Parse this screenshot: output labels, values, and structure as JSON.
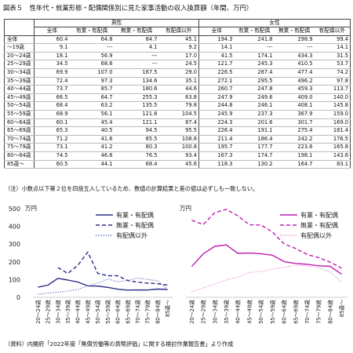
{
  "title": "図表５　性年代・就業形態・配偶関係別に見た家事活動の収入換算額（年間、万円）",
  "table": {
    "group_labels": [
      "男性",
      "女性"
    ],
    "column_labels": [
      "全体",
      "有業・有配偶",
      "無業・有配偶",
      "有配偶以外"
    ],
    "rows": [
      {
        "label": "全体",
        "male": [
          "60.4",
          "64.8",
          "84.7",
          "45.1"
        ],
        "female": [
          "194.3",
          "241.8",
          "298.9",
          "99.4"
        ]
      },
      {
        "label": "～19歳",
        "male": [
          "9.1",
          "---",
          "4.1",
          "9.2"
        ],
        "female": [
          "14.1",
          "---",
          "---",
          "14.1"
        ]
      },
      {
        "label": "20～24歳",
        "male": [
          "18.1",
          "56.9",
          "---",
          "17.0"
        ],
        "female": [
          "41.5",
          "174.1",
          "434.3",
          "31.5"
        ]
      },
      {
        "label": "25～29歳",
        "male": [
          "34.5",
          "68.6",
          "---",
          "24.5"
        ],
        "female": [
          "121.7",
          "245.3",
          "410.5",
          "53.7"
        ]
      },
      {
        "label": "30～34歳",
        "male": [
          "69.9",
          "107.0",
          "167.5",
          "29.0"
        ],
        "female": [
          "226.5",
          "287.4",
          "477.4",
          "74.2"
        ]
      },
      {
        "label": "35～39歳",
        "male": [
          "72.4",
          "97.3",
          "134.6",
          "35.1"
        ],
        "female": [
          "272.1",
          "295.5",
          "496.2",
          "97.8"
        ]
      },
      {
        "label": "40～44歳",
        "male": [
          "73.7",
          "85.7",
          "180.6",
          "44.6"
        ],
        "female": [
          "260.7",
          "247.8",
          "459.3",
          "113.7"
        ]
      },
      {
        "label": "45～49歳",
        "male": [
          "66.5",
          "64.7",
          "255.3",
          "63.8"
        ],
        "female": [
          "247.9",
          "249.6",
          "409.0",
          "140.0"
        ]
      },
      {
        "label": "50～54歳",
        "male": [
          "68.4",
          "63.2",
          "135.5",
          "79.8"
        ],
        "female": [
          "244.8",
          "246.1",
          "408.1",
          "145.8"
        ]
      },
      {
        "label": "55～59歳",
        "male": [
          "68.9",
          "56.1",
          "121.6",
          "104.5"
        ],
        "female": [
          "245.9",
          "237.3",
          "367.9",
          "159.0"
        ]
      },
      {
        "label": "60～64歳",
        "male": [
          "60.1",
          "45.4",
          "121.1",
          "87.4"
        ],
        "female": [
          "224.3",
          "201.6",
          "301.7",
          "169.0"
        ]
      },
      {
        "label": "65～69歳",
        "male": [
          "65.3",
          "40.5",
          "94.5",
          "95.5"
        ],
        "female": [
          "226.4",
          "191.1",
          "275.4",
          "181.4"
        ]
      },
      {
        "label": "70～74歳",
        "male": [
          "71.2",
          "41.6",
          "85.5",
          "108.8"
        ],
        "female": [
          "211.4",
          "186.4",
          "242.2",
          "176.5"
        ]
      },
      {
        "label": "75～79歳",
        "male": [
          "73.1",
          "41.2",
          "80.3",
          "100.8"
        ],
        "female": [
          "195.7",
          "177.7",
          "223.6",
          "165.8"
        ]
      },
      {
        "label": "80～84歳",
        "male": [
          "74.5",
          "46.6",
          "76.5",
          "93.4"
        ],
        "female": [
          "167.3",
          "174.7",
          "198.1",
          "143.6"
        ]
      },
      {
        "label": "85歳～",
        "male": [
          "60.5",
          "44.1",
          "68.4",
          "45.6"
        ],
        "female": [
          "118.3",
          "130.2",
          "164.7",
          "83.1"
        ]
      }
    ]
  },
  "note": "（注）小数点以下第２位を四捨五入しているため、数値の計算結果と差の値は必ずしも一致しない。",
  "source": "（資料）内閣府「2022年度「無償労働等の貨幣評価」に関する検討作業報告書」より作成",
  "chart_data": [
    {
      "type": "line",
      "ylabel": "万円",
      "ylim": [
        0,
        500
      ],
      "yticks": [
        "500",
        "400",
        "300",
        "200",
        "100",
        "0"
      ],
      "categories": [
        "20～24歳",
        "25～29歳",
        "30～34歳",
        "35～39歳",
        "40～44歳",
        "45～49歳",
        "50～54歳",
        "55～59歳",
        "60～64歳",
        "65～69歳",
        "70～74歳",
        "75～79歳",
        "80～84歳",
        "85歳～"
      ],
      "legend_position": "top-right",
      "series": [
        {
          "name": "有業・有配偶",
          "color": "#2a2a8a",
          "style": "solid",
          "values": [
            56.9,
            68.6,
            107.0,
            97.3,
            85.7,
            64.7,
            63.2,
            56.1,
            45.4,
            40.5,
            41.6,
            41.2,
            46.6,
            44.1
          ]
        },
        {
          "name": "無業・有配偶",
          "color": "#2a2a8a",
          "style": "dashed",
          "values": [
            null,
            null,
            167.5,
            134.6,
            180.6,
            255.3,
            135.5,
            121.6,
            121.1,
            94.5,
            85.5,
            80.3,
            76.5,
            68.4
          ]
        },
        {
          "name": "有配偶以外",
          "color": "#5a6ac0",
          "style": "dotted",
          "values": [
            17.0,
            24.5,
            29.0,
            35.1,
            44.6,
            63.8,
            79.8,
            104.5,
            87.4,
            95.5,
            108.8,
            100.8,
            93.4,
            45.6
          ]
        }
      ]
    },
    {
      "type": "line",
      "ylabel": "万円",
      "ylim": [
        0,
        500
      ],
      "yticks": [
        "500",
        "400",
        "300",
        "200",
        "100",
        "0"
      ],
      "categories": [
        "20～24歳",
        "25～29歳",
        "30～34歳",
        "35～39歳",
        "40～44歳",
        "45～49歳",
        "50～54歳",
        "55～59歳",
        "60～64歳",
        "65～69歳",
        "70～74歳",
        "75～79歳",
        "80～84歳",
        "85歳～"
      ],
      "legend_position": "top-right",
      "series": [
        {
          "name": "有業・有配偶",
          "color": "#c21bb4",
          "style": "solid",
          "values": [
            174.1,
            245.3,
            287.4,
            295.5,
            247.8,
            249.6,
            246.1,
            237.3,
            201.6,
            191.1,
            186.4,
            177.7,
            174.7,
            130.2
          ]
        },
        {
          "name": "無業・有配偶",
          "color": "#c21bb4",
          "style": "dashed",
          "values": [
            434.3,
            410.5,
            477.4,
            496.2,
            459.3,
            409.0,
            408.1,
            367.9,
            301.7,
            275.4,
            242.2,
            223.6,
            198.1,
            164.7
          ]
        },
        {
          "name": "有配偶以外",
          "color": "#e08ad8",
          "style": "dotted",
          "values": [
            31.5,
            53.7,
            74.2,
            97.8,
            113.7,
            140.0,
            145.8,
            159.0,
            169.0,
            181.4,
            176.5,
            165.8,
            143.6,
            83.1
          ]
        }
      ]
    }
  ]
}
